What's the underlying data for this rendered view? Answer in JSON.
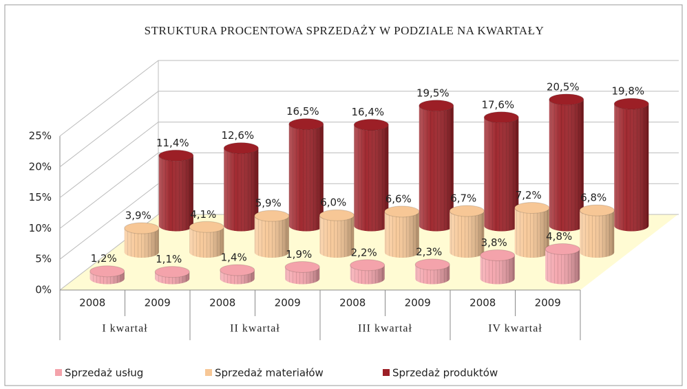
{
  "chart_data": {
    "type": "bar3d",
    "title": "STRUKTURA PROCENTOWA SPRZEDAŻY W PODZIALE NA KWARTAŁY",
    "categories": [
      "2008",
      "2009",
      "2008",
      "2009",
      "2008",
      "2009",
      "2008",
      "2009"
    ],
    "category_groups": [
      "I kwartał",
      "II kwartał",
      "III kwartał",
      "IV kwartał"
    ],
    "ylim": [
      0,
      25
    ],
    "yticks": [
      {
        "value": 0,
        "label": "0%"
      },
      {
        "value": 5,
        "label": "5%"
      },
      {
        "value": 10,
        "label": "10%"
      },
      {
        "value": 15,
        "label": "15%"
      },
      {
        "value": 20,
        "label": "20%"
      },
      {
        "value": 25,
        "label": "25%"
      }
    ],
    "grid": true,
    "legend": "bottom",
    "series": [
      {
        "name": "Sprzedaż usług",
        "color": "#f4a3ab",
        "values": [
          1.2,
          1.1,
          1.4,
          1.9,
          2.2,
          2.3,
          3.8,
          4.8
        ],
        "value_labels": [
          "1,2%",
          "1,1%",
          "1,4%",
          "1,9%",
          "2,2%",
          "2,3%",
          "3,8%",
          "4,8%"
        ]
      },
      {
        "name": "Sprzedaż materiałów",
        "color": "#f7c796",
        "values": [
          3.9,
          4.1,
          5.9,
          6.0,
          6.6,
          6.7,
          7.2,
          6.8
        ],
        "value_labels": [
          "3,9%",
          "4,1%",
          "5,9%",
          "6,0%",
          "6,6%",
          "6,7%",
          "7,2%",
          "6,8%"
        ]
      },
      {
        "name": "Sprzedaż produktów",
        "color": "#9c1f26",
        "values": [
          11.4,
          12.6,
          16.5,
          16.4,
          19.5,
          17.6,
          20.5,
          19.8
        ],
        "value_labels": [
          "11,4%",
          "12,6%",
          "16,5%",
          "16,4%",
          "19,5%",
          "17,6%",
          "20,5%",
          "19,8%"
        ]
      }
    ]
  }
}
